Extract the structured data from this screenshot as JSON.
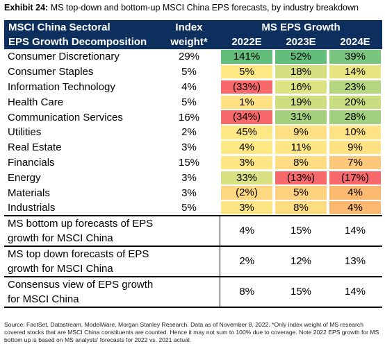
{
  "title": {
    "exhibit": "Exhibit 24:",
    "text": " MS top-down and bottom-up MSCI China EPS forecasts, by industry breakdown"
  },
  "header": {
    "col1_line1": "MSCI China Sectoral",
    "col1_line2": "EPS Growth Decomposition",
    "weight_line1": "Index",
    "weight_line2": "weight*",
    "growth_label": "MS EPS Growth",
    "years": [
      "2022E",
      "2023E",
      "2024E"
    ]
  },
  "rows": [
    {
      "sector": "Consumer Discretionary",
      "weight": "29%",
      "values": [
        "141%",
        "52%",
        "39%"
      ],
      "colors": [
        "#63be7b",
        "#63be7b",
        "#7ac67f"
      ]
    },
    {
      "sector": "Consumer Staples",
      "weight": "5%",
      "values": [
        "5%",
        "18%",
        "14%"
      ],
      "colors": [
        "#fde883",
        "#d3df81",
        "#e7e582"
      ]
    },
    {
      "sector": "Information Technology",
      "weight": "4%",
      "values": [
        "(33%)",
        "16%",
        "23%"
      ],
      "colors": [
        "#f8696b",
        "#dde282",
        "#b5d680"
      ]
    },
    {
      "sector": "Health Care",
      "weight": "5%",
      "values": [
        "1%",
        "19%",
        "20%"
      ],
      "colors": [
        "#fde182",
        "#cfde81",
        "#cadd81"
      ]
    },
    {
      "sector": "Communication Services",
      "weight": "16%",
      "values": [
        "(34%)",
        "31%",
        "28%"
      ],
      "colors": [
        "#f8696b",
        "#a5d17f",
        "#9fcf7f"
      ]
    },
    {
      "sector": "Utilities",
      "weight": "2%",
      "values": [
        "45%",
        "9%",
        "10%"
      ],
      "colors": [
        "#fee883",
        "#fedf82",
        "#fde383"
      ]
    },
    {
      "sector": "Real Estate",
      "weight": "3%",
      "values": [
        "4%",
        "11%",
        "9%"
      ],
      "colors": [
        "#fde883",
        "#fde683",
        "#fde182"
      ]
    },
    {
      "sector": "Financials",
      "weight": "15%",
      "values": [
        "3%",
        "8%",
        "7%"
      ],
      "colors": [
        "#fde683",
        "#fedd82",
        "#fcc97b"
      ]
    },
    {
      "sector": "Energy",
      "weight": "3%",
      "values": [
        "33%",
        "(13%)",
        "(17%)"
      ],
      "colors": [
        "#d9e081",
        "#f8696b",
        "#f8696b"
      ]
    },
    {
      "sector": "Materials",
      "weight": "3%",
      "values": [
        "(2%)",
        "5%",
        "4%"
      ],
      "colors": [
        "#fdd880",
        "#fdd17e",
        "#fbb86f"
      ]
    },
    {
      "sector": "Industrials",
      "weight": "5%",
      "values": [
        "3%",
        "8%",
        "4%"
      ],
      "colors": [
        "#fde683",
        "#fedd82",
        "#fbb86f"
      ]
    }
  ],
  "summary": [
    {
      "line1": "MS bottom up forecasts of EPS",
      "line2": "growth for MSCI China",
      "values": [
        "4%",
        "15%",
        "14%"
      ]
    },
    {
      "line1": "MS top down forecasts of EPS",
      "line2": "growth for MSCI China",
      "values": [
        "2%",
        "12%",
        "13%"
      ]
    },
    {
      "line1": "Consensus view of EPS growth",
      "line2": "for MSCI China",
      "values": [
        "8%",
        "15%",
        "14%"
      ]
    }
  ],
  "source": "Source: FactSet, Datastream, ModelWare, Morgan Stanley Research. Data as of November 8, 2022. *Only index weight of MS research covered stocks that are MSCI China constituents are counted. Hence it may not sum to 100% due to coverage. Note 2022 EPS growth for MS bottom up is based on MS analysts' forecasts for 2022 vs. 2021 actual."
}
